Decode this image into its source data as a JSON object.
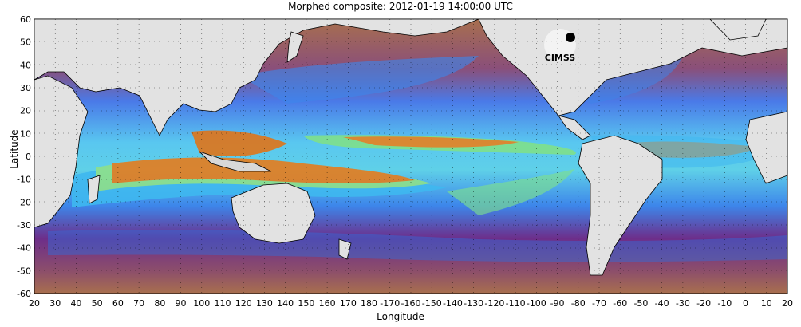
{
  "title": "Morphed composite: 2012-01-19 14:00:00 UTC",
  "x_axis_label": "Longitude",
  "y_axis_label": "Latitude",
  "x_ticks": [
    "20",
    "30",
    "40",
    "50",
    "60",
    "70",
    "80",
    "90",
    "100",
    "110",
    "120",
    "130",
    "140",
    "150",
    "160",
    "170",
    "180",
    "-170",
    "-160",
    "-150",
    "-140",
    "-130",
    "-120",
    "-110",
    "-100",
    "-90",
    "-80",
    "-70",
    "-60",
    "-50",
    "-40",
    "-30",
    "-20",
    "-10",
    "0",
    "10",
    "20"
  ],
  "y_ticks": [
    "60",
    "50",
    "40",
    "30",
    "20",
    "10",
    "0",
    "-10",
    "-20",
    "-30",
    "-40",
    "-50",
    "-60"
  ],
  "logo": {
    "text": "CIMSS",
    "name": "cimss-logo"
  },
  "colors": {
    "dry": "#a06a4a",
    "purple": "#7a2e8a",
    "blue": "#2f6fe0",
    "cyan": "#3fb8f0",
    "green": "#7fe08a",
    "orange": "#e07418",
    "land": "#e2e2e2"
  }
}
